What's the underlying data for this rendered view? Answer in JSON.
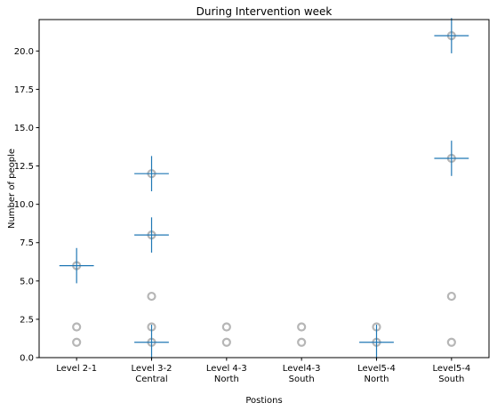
{
  "chart_data": {
    "type": "scatter",
    "title": "During Intervention week",
    "xlabel": "Postions",
    "ylabel": "Number of people",
    "ylim": [
      0,
      22.05
    ],
    "xlim": [
      -0.5,
      5.5
    ],
    "yticks": [
      0.0,
      2.5,
      5.0,
      7.5,
      10.0,
      12.5,
      15.0,
      17.5,
      20.0
    ],
    "ytick_labels": [
      "0.0",
      "2.5",
      "5.0",
      "7.5",
      "10.0",
      "12.5",
      "15.0",
      "17.5",
      "20.0"
    ],
    "categories": [
      {
        "lines": [
          "Level 2-1"
        ]
      },
      {
        "lines": [
          "Level 3-2",
          "Central"
        ]
      },
      {
        "lines": [
          "Level 4-3",
          "North"
        ]
      },
      {
        "lines": [
          "Level4-3",
          "South"
        ]
      },
      {
        "lines": [
          "Level5-4",
          "North"
        ]
      },
      {
        "lines": [
          "Level5-4",
          "South"
        ]
      }
    ],
    "gray_points": [
      {
        "x": 0,
        "y": 1
      },
      {
        "x": 0,
        "y": 2
      },
      {
        "x": 0,
        "y": 6
      },
      {
        "x": 1,
        "y": 1
      },
      {
        "x": 1,
        "y": 2
      },
      {
        "x": 1,
        "y": 4
      },
      {
        "x": 1,
        "y": 8
      },
      {
        "x": 1,
        "y": 12
      },
      {
        "x": 2,
        "y": 1
      },
      {
        "x": 2,
        "y": 2
      },
      {
        "x": 3,
        "y": 1
      },
      {
        "x": 3,
        "y": 2
      },
      {
        "x": 4,
        "y": 1
      },
      {
        "x": 4,
        "y": 2
      },
      {
        "x": 5,
        "y": 1
      },
      {
        "x": 5,
        "y": 4
      },
      {
        "x": 5,
        "y": 13
      },
      {
        "x": 5,
        "y": 21
      }
    ],
    "error_bars": [
      {
        "x": 0,
        "y": 6,
        "yerr": 1.15,
        "xerr": 0.23
      },
      {
        "x": 1,
        "y": 12,
        "yerr": 1.15,
        "xerr": 0.23
      },
      {
        "x": 1,
        "y": 8,
        "yerr": 1.15,
        "xerr": 0.23
      },
      {
        "x": 1,
        "y": 1,
        "yerr": 1.15,
        "xerr": 0.23
      },
      {
        "x": 4,
        "y": 1,
        "yerr": 1.15,
        "xerr": 0.23
      },
      {
        "x": 5,
        "y": 21,
        "yerr": 1.15,
        "xerr": 0.23
      },
      {
        "x": 5,
        "y": 13,
        "yerr": 1.15,
        "xerr": 0.23
      }
    ],
    "colors": {
      "error_bar": "#1f77b4",
      "point": "#a9a9a9"
    },
    "grid": false,
    "legend": "none"
  }
}
